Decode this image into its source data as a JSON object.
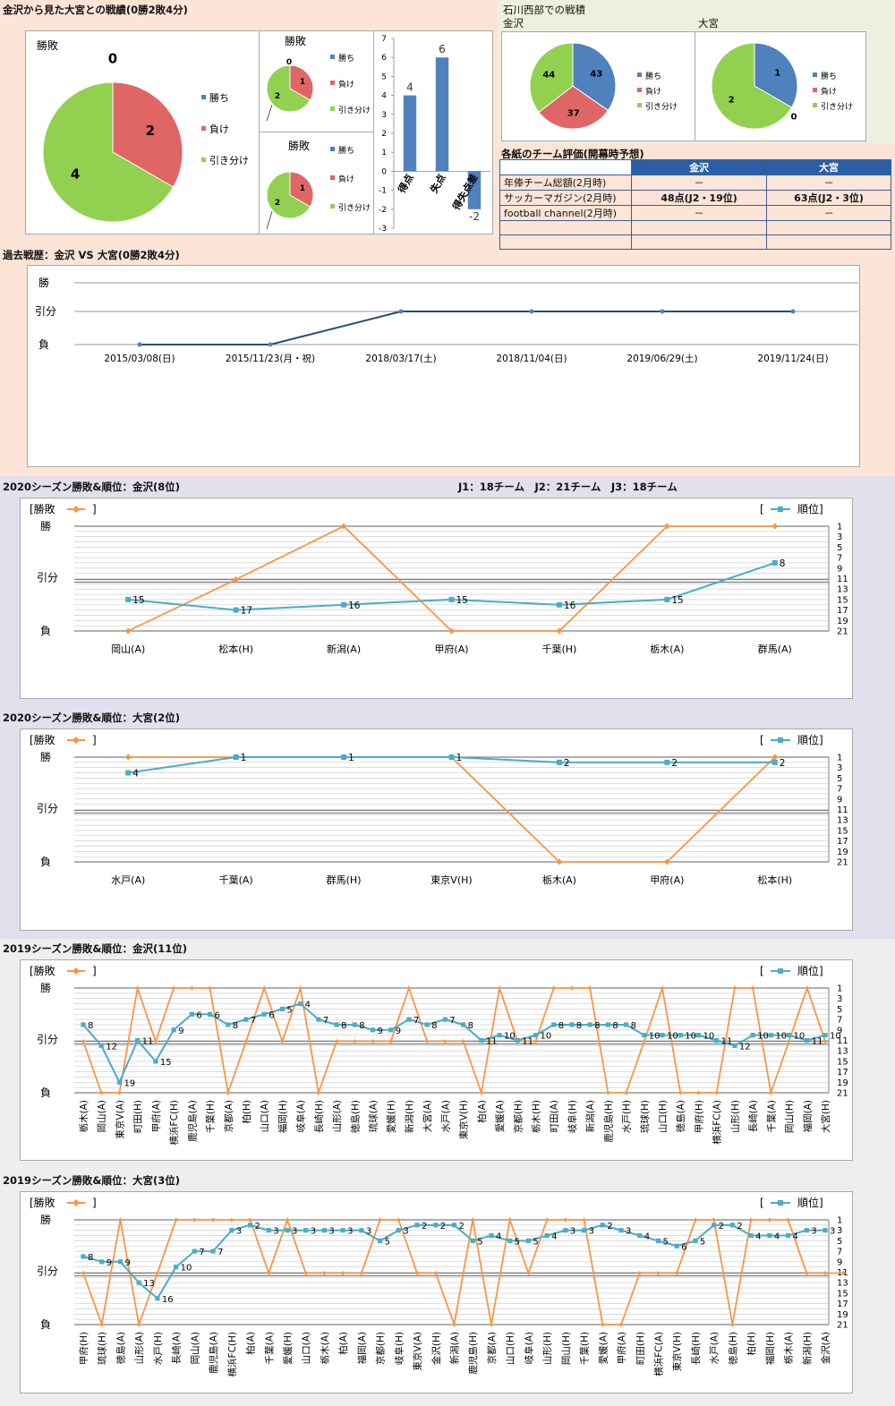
{
  "sections": {
    "head_to_head": "金沢から見た大宮との戦績(0勝2敗4分)",
    "ishikawa": "石川西部での戦積",
    "evaluation": "各紙のチーム評価(開幕時予想)",
    "history": "過去戦歴：金沢 VS 大宮(0勝2敗4分)",
    "s2020_kanazawa": "2020シーズン勝敗&順位：金沢(8位)",
    "league_note": "J1：18チーム　J2：21チーム　J3：18チーム",
    "s2020_omiya": "2020シーズン勝敗&順位：大宮(2位)",
    "s2019_kanazawa": "2019シーズン勝敗&順位：金沢(11位)",
    "s2019_omiya": "2019シーズン勝敗&順位：大宮(3位)"
  },
  "labels": {
    "win": "勝",
    "draw": "引分",
    "loss": "負",
    "result_legend": "[勝敗",
    "bracket_close": "]",
    "bracket_open": "[",
    "rank_legend": "順位]",
    "kanazawa": "金沢",
    "omiya": "大宮"
  },
  "evaluation": {
    "headers": [
      "",
      "金沢",
      "大宮"
    ],
    "rows": [
      [
        "年俸チーム総額(2月時)",
        "－",
        "－"
      ],
      [
        "サッカーマガジン(2月時)",
        "48点(J2・19位)",
        "63点(J2・3位)"
      ],
      [
        "football channel(2月時)",
        "－",
        "－"
      ],
      [
        "",
        "",
        ""
      ],
      [
        "",
        "",
        ""
      ]
    ]
  },
  "chart_data": [
    {
      "type": "pie",
      "title": "勝敗",
      "categories": [
        "勝ち",
        "負け",
        "引き分け"
      ],
      "values": [
        0,
        2,
        4
      ],
      "colors": [
        "#4f81bd",
        "#e06666",
        "#92d050"
      ]
    },
    {
      "type": "pie",
      "title": "勝敗",
      "categories": [
        "勝ち",
        "負け",
        "引き分け"
      ],
      "values": [
        0,
        1,
        2
      ],
      "colors": [
        "#4f81bd",
        "#e06666",
        "#92d050"
      ]
    },
    {
      "type": "pie",
      "title": "勝敗",
      "categories": [
        "勝ち",
        "負け",
        "引き分け"
      ],
      "values": [
        0,
        1,
        2
      ],
      "colors": [
        "#4f81bd",
        "#e06666",
        "#92d050"
      ]
    },
    {
      "type": "bar",
      "categories": [
        "得点",
        "失点",
        "得失点差"
      ],
      "values": [
        4,
        6,
        -2
      ],
      "ylim": [
        -3,
        7
      ],
      "yticks": [
        -3,
        -2,
        -1,
        0,
        1,
        2,
        3,
        4,
        5,
        6,
        7
      ],
      "color": "#4f81bd"
    },
    {
      "type": "pie",
      "title": "金沢",
      "categories": [
        "勝ち",
        "負け",
        "引き分け"
      ],
      "values": [
        43,
        37,
        44
      ],
      "colors": [
        "#4f81bd",
        "#e06666",
        "#92d050"
      ]
    },
    {
      "type": "pie",
      "title": "大宮",
      "categories": [
        "勝ち",
        "負け",
        "引き分け"
      ],
      "values": [
        1,
        0,
        2
      ],
      "colors": [
        "#4f81bd",
        "#e06666",
        "#92d050"
      ]
    },
    {
      "type": "line",
      "title": "過去戦歴：金沢 VS 大宮(0勝2敗4分)",
      "x": [
        "2015/03/08(日)",
        "2015/11/23(月・祝)",
        "2018/03/17(土)",
        "2018/11/04(日)",
        "2019/06/29(土)",
        "2019/11/24(日)"
      ],
      "results": [
        "負",
        "負",
        "引分",
        "引分",
        "引分",
        "引分"
      ]
    },
    {
      "type": "line",
      "title": "2020シーズン勝敗&順位：金沢(8位)",
      "x": [
        "岡山(A)",
        "松本(H)",
        "新潟(A)",
        "甲府(A)",
        "千葉(H)",
        "栃木(A)",
        "群馬(A)"
      ],
      "results": [
        "負",
        "引分",
        "勝",
        "負",
        "負",
        "勝",
        "勝"
      ],
      "ranks": [
        15,
        17,
        16,
        15,
        16,
        15,
        8
      ],
      "rank_ticks": [
        1,
        3,
        5,
        7,
        9,
        11,
        13,
        15,
        17,
        19,
        21
      ]
    },
    {
      "type": "line",
      "title": "2020シーズン勝敗&順位：大宮(2位)",
      "x": [
        "水戸(A)",
        "千葉(A)",
        "群馬(H)",
        "東京V(H)",
        "栃木(A)",
        "甲府(A)",
        "松本(H)"
      ],
      "results": [
        "勝",
        "勝",
        "勝",
        "勝",
        "負",
        "負",
        "勝"
      ],
      "ranks": [
        4,
        1,
        1,
        1,
        2,
        2,
        2
      ],
      "rank_ticks": [
        1,
        3,
        5,
        7,
        9,
        11,
        13,
        15,
        17,
        19,
        21
      ]
    },
    {
      "type": "line",
      "title": "2019シーズン勝敗&順位：金沢(11位)",
      "x": [
        "栃木(A)",
        "岡山(A)",
        "東京V(A)",
        "町田(H)",
        "甲府(A)",
        "横浜FC(H)",
        "鹿児島(A)",
        "千葉(H)",
        "京都(A)",
        "柏(H)",
        "山口(A)",
        "福岡(H)",
        "岐阜(A)",
        "長崎(H)",
        "山形(A)",
        "徳島(H)",
        "琉球(A)",
        "愛媛(H)",
        "新潟(H)",
        "大宮(A)",
        "水戸(A)",
        "東京V(H)",
        "柏(A)",
        "愛媛(A)",
        "京都(H)",
        "栃木(H)",
        "町田(A)",
        "岐阜(H)",
        "新潟(A)",
        "鹿児島(H)",
        "水戸(H)",
        "琉球(H)",
        "山口(H)",
        "徳島(A)",
        "甲府(H)",
        "横浜FC(A)",
        "山形(H)",
        "長崎(A)",
        "千葉(A)",
        "岡山(H)",
        "福岡(A)",
        "大宮(H)"
      ],
      "results": [
        "引分",
        "負",
        "負",
        "勝",
        "引分",
        "勝",
        "勝",
        "勝",
        "負",
        "引分",
        "勝",
        "引分",
        "勝",
        "負",
        "引分",
        "引分",
        "引分",
        "引分",
        "勝",
        "引分",
        "引分",
        "引分",
        "負",
        "勝",
        "引分",
        "引分",
        "勝",
        "勝",
        "勝",
        "負",
        "負",
        "引分",
        "勝",
        "負",
        "負",
        "負",
        "勝",
        "勝",
        "負",
        "引分",
        "勝",
        "引分"
      ],
      "ranks": [
        8,
        12,
        19,
        11,
        15,
        9,
        6,
        6,
        8,
        7,
        6,
        5,
        4,
        7,
        8,
        8,
        9,
        9,
        7,
        8,
        7,
        8,
        11,
        10,
        11,
        10,
        8,
        8,
        8,
        8,
        8,
        10,
        10,
        10,
        10,
        11,
        12,
        10,
        10,
        10,
        11,
        10,
        11
      ],
      "rank_ticks": [
        1,
        3,
        5,
        7,
        9,
        11,
        13,
        15,
        17,
        19,
        21
      ]
    },
    {
      "type": "line",
      "title": "2019シーズン勝敗&順位：大宮(3位)",
      "x": [
        "甲府(H)",
        "琉球(H)",
        "徳島(A)",
        "山形(A)",
        "水戸(H)",
        "長崎(A)",
        "岡山(A)",
        "鹿児島(A)",
        "横浜FC(H)",
        "柏(A)",
        "千葉(A)",
        "愛媛(H)",
        "山口(A)",
        "栃木(A)",
        "柏(A)",
        "福岡(A)",
        "京都(H)",
        "岐阜(H)",
        "東京V(A)",
        "金沢(H)",
        "新潟(A)",
        "鹿児島(H)",
        "京都(A)",
        "山口(H)",
        "岐阜(A)",
        "山形(H)",
        "岡山(H)",
        "千葉(H)",
        "愛媛(A)",
        "甲府(A)",
        "町田(H)",
        "横浜FC(A)",
        "東京V(H)",
        "長崎(H)",
        "水戸(A)",
        "徳島(H)",
        "柏(H)",
        "福岡(H)",
        "栃木(A)",
        "新潟(H)",
        "金沢(A)"
      ],
      "results": [
        "引分",
        "負",
        "勝",
        "負",
        "引分",
        "勝",
        "勝",
        "勝",
        "勝",
        "勝",
        "引分",
        "勝",
        "引分",
        "引分",
        "引分",
        "引分",
        "勝",
        "勝",
        "引分",
        "引分",
        "負",
        "勝",
        "負",
        "勝",
        "引分",
        "勝",
        "勝",
        "勝",
        "負",
        "負",
        "引分",
        "引分",
        "引分",
        "勝",
        "勝",
        "負",
        "勝",
        "勝",
        "勝",
        "引分",
        "引分",
        "引分"
      ],
      "ranks": [
        8,
        9,
        9,
        13,
        16,
        10,
        7,
        7,
        3,
        2,
        3,
        3,
        3,
        3,
        3,
        3,
        5,
        3,
        2,
        2,
        2,
        5,
        4,
        5,
        5,
        4,
        3,
        3,
        2,
        3,
        4,
        5,
        6,
        5,
        2,
        2,
        4,
        4,
        4,
        3,
        3,
        3,
        3
      ],
      "rank_ticks": [
        1,
        3,
        5,
        7,
        9,
        11,
        13,
        15,
        17,
        19,
        21
      ]
    }
  ]
}
